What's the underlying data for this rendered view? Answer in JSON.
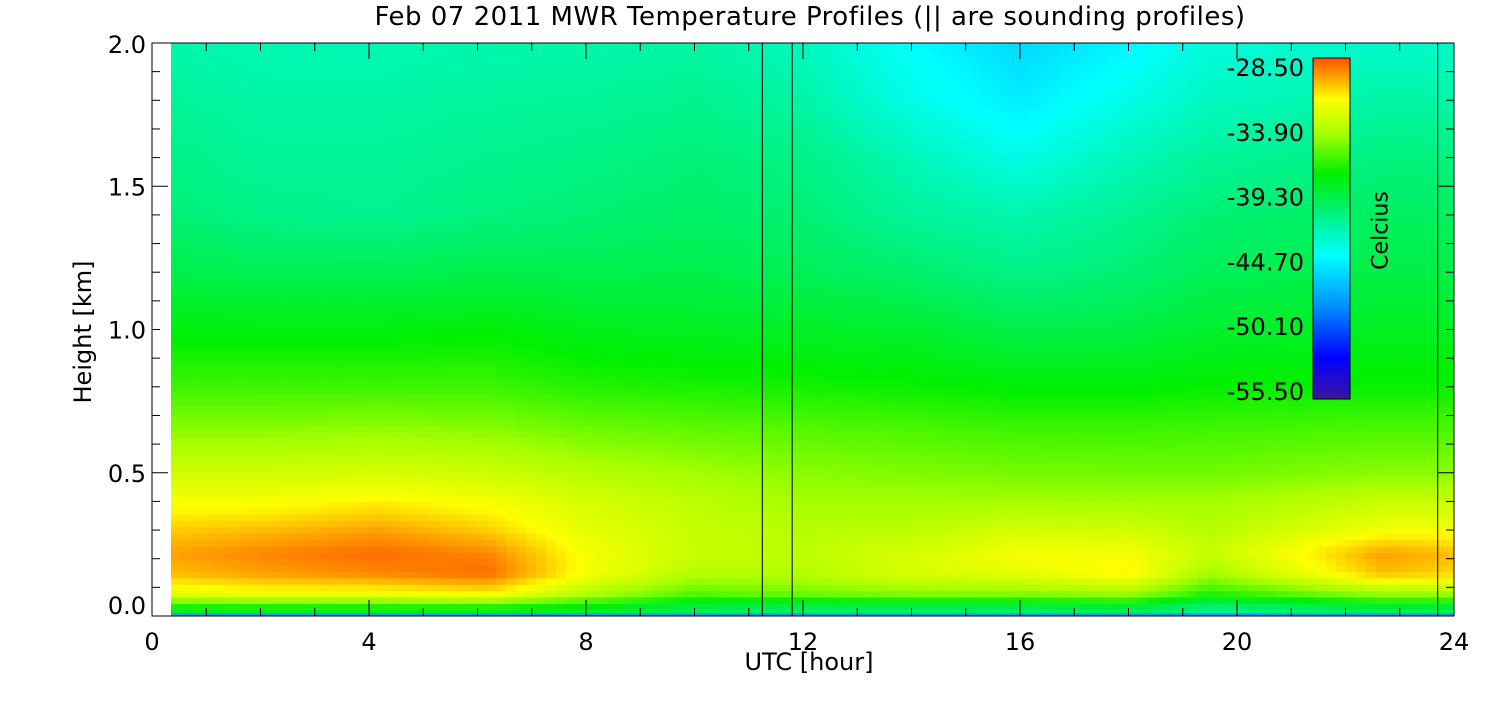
{
  "chart_data": {
    "type": "heatmap",
    "title": "Feb 07 2011 MWR Temperature Profiles (|| are sounding profiles)",
    "xlabel": "UTC [hour]",
    "ylabel": "Height [km]",
    "xlim": [
      0,
      24
    ],
    "ylim": [
      0,
      2
    ],
    "x_ticks": [
      "0",
      "4",
      "8",
      "12",
      "16",
      "20",
      "24"
    ],
    "y_ticks": [
      "0.0",
      "0.5",
      "1.0",
      "1.5",
      "2.0"
    ],
    "colorbar": {
      "label": "Celcius",
      "ticks": [
        "-28.50",
        "-33.90",
        "-39.30",
        "-44.70",
        "-50.10",
        "-55.50"
      ],
      "range": [
        -55.5,
        -28.5
      ]
    },
    "sounding_profiles_utc": [
      11.25,
      11.8,
      23.7
    ],
    "data_coverage_utc": [
      0.35,
      24
    ],
    "grid": false,
    "heights_km": [
      0.02,
      0.08,
      0.15,
      0.22,
      0.3,
      0.4,
      0.5,
      0.65,
      0.8,
      1.0,
      1.2,
      1.4,
      1.6,
      1.8,
      2.0
    ],
    "times_utc": [
      0.35,
      2,
      4.2,
      6.2,
      8,
      10,
      12,
      14,
      16,
      18,
      19.5,
      22.7,
      24
    ],
    "temperature_c": [
      [
        -38.5,
        -38.5,
        -38.5,
        -38.5,
        -38.8,
        -40.0,
        -40.5,
        -40.5,
        -40.5,
        -40.0,
        -41.5,
        -40.0,
        -40.0
      ],
      [
        -32.5,
        -32.0,
        -32.0,
        -31.5,
        -34.0,
        -36.0,
        -35.5,
        -35.0,
        -35.0,
        -34.5,
        -37.0,
        -34.5,
        -34.5
      ],
      [
        -30.5,
        -30.0,
        -29.5,
        -29.0,
        -32.0,
        -34.0,
        -34.0,
        -33.0,
        -32.5,
        -31.5,
        -34.5,
        -30.5,
        -31.0
      ],
      [
        -30.0,
        -29.5,
        -29.0,
        -29.5,
        -32.0,
        -33.5,
        -33.8,
        -33.0,
        -32.0,
        -32.0,
        -33.5,
        -30.0,
        -30.5
      ],
      [
        -30.8,
        -30.5,
        -30.0,
        -30.8,
        -32.5,
        -33.5,
        -34.0,
        -33.8,
        -33.0,
        -33.2,
        -34.0,
        -32.0,
        -32.0
      ],
      [
        -32.0,
        -32.0,
        -31.5,
        -32.0,
        -33.0,
        -33.8,
        -34.5,
        -34.5,
        -34.5,
        -34.5,
        -34.5,
        -33.5,
        -33.5
      ],
      [
        -33.2,
        -33.2,
        -33.0,
        -33.3,
        -34.0,
        -34.5,
        -35.0,
        -35.2,
        -35.4,
        -35.5,
        -35.5,
        -35.0,
        -35.0
      ],
      [
        -35.0,
        -35.0,
        -34.8,
        -35.0,
        -35.5,
        -35.8,
        -36.0,
        -36.2,
        -36.5,
        -36.5,
        -36.4,
        -36.2,
        -36.2
      ],
      [
        -36.5,
        -36.5,
        -36.5,
        -36.5,
        -37.0,
        -37.2,
        -37.3,
        -37.5,
        -37.8,
        -37.8,
        -37.6,
        -37.5,
        -37.5
      ],
      [
        -38.0,
        -38.0,
        -38.0,
        -37.8,
        -38.3,
        -38.5,
        -38.6,
        -38.8,
        -39.5,
        -39.3,
        -38.8,
        -38.5,
        -38.5
      ],
      [
        -39.5,
        -39.7,
        -39.7,
        -39.5,
        -39.6,
        -39.5,
        -39.8,
        -40.3,
        -41.0,
        -40.5,
        -39.8,
        -39.4,
        -39.4
      ],
      [
        -40.5,
        -41.0,
        -41.2,
        -40.8,
        -40.5,
        -40.2,
        -40.5,
        -41.5,
        -42.0,
        -41.3,
        -40.5,
        -40.0,
        -40.0
      ],
      [
        -41.0,
        -41.5,
        -41.5,
        -41.2,
        -41.0,
        -40.6,
        -41.0,
        -42.3,
        -43.5,
        -42.3,
        -41.5,
        -40.8,
        -40.8
      ],
      [
        -41.5,
        -41.8,
        -41.8,
        -41.6,
        -41.5,
        -41.2,
        -41.8,
        -43.5,
        -44.8,
        -43.5,
        -42.5,
        -41.8,
        -41.8
      ],
      [
        -42.0,
        -42.2,
        -42.2,
        -42.0,
        -42.0,
        -41.8,
        -42.5,
        -44.2,
        -45.5,
        -44.5,
        -43.2,
        -42.8,
        -42.8
      ]
    ]
  }
}
